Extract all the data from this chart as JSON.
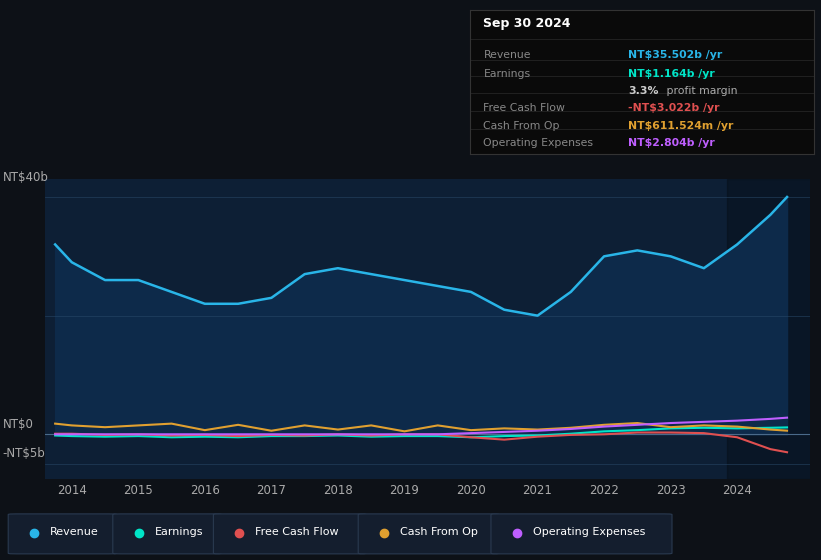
{
  "bg_color": "#0d1117",
  "plot_bg_color": "#0d1f35",
  "title_date": "Sep 30 2024",
  "ylabel_color": "#aaaaaa",
  "grid_color": "#2a4a6a",
  "zero_line_color": "#4a6a8a",
  "revenue_color": "#29b5e8",
  "earnings_color": "#00e5c8",
  "fcf_color": "#e05050",
  "cashfromop_color": "#e0a030",
  "opex_color": "#bf5fff",
  "revenue_fill_alpha": 0.9,
  "legend": [
    {
      "label": "Revenue",
      "color": "#29b5e8"
    },
    {
      "label": "Earnings",
      "color": "#00e5c8"
    },
    {
      "label": "Free Cash Flow",
      "color": "#e05050"
    },
    {
      "label": "Cash From Op",
      "color": "#e0a030"
    },
    {
      "label": "Operating Expenses",
      "color": "#bf5fff"
    }
  ],
  "revenue_data": {
    "x": [
      2013.75,
      2014.0,
      2014.5,
      2015.0,
      2015.5,
      2016.0,
      2016.5,
      2017.0,
      2017.5,
      2018.0,
      2018.5,
      2019.0,
      2019.5,
      2020.0,
      2020.5,
      2021.0,
      2021.5,
      2022.0,
      2022.5,
      2023.0,
      2023.5,
      2024.0,
      2024.5,
      2024.75
    ],
    "y": [
      32,
      29,
      26,
      26,
      24,
      22,
      22,
      23,
      27,
      28,
      27,
      26,
      25,
      24,
      21,
      20,
      24,
      30,
      31,
      30,
      28,
      32,
      37,
      40
    ]
  },
  "earnings_data": {
    "x": [
      2013.75,
      2014.0,
      2014.5,
      2015.0,
      2015.5,
      2016.0,
      2016.5,
      2017.0,
      2017.5,
      2018.0,
      2018.5,
      2019.0,
      2019.5,
      2020.0,
      2020.5,
      2021.0,
      2021.5,
      2022.0,
      2022.5,
      2023.0,
      2023.5,
      2024.0,
      2024.5,
      2024.75
    ],
    "y": [
      -0.2,
      -0.3,
      -0.4,
      -0.3,
      -0.5,
      -0.4,
      -0.5,
      -0.3,
      -0.3,
      -0.2,
      -0.4,
      -0.3,
      -0.3,
      -0.5,
      -0.3,
      -0.2,
      0.1,
      0.5,
      0.7,
      1.0,
      1.1,
      1.0,
      1.1,
      1.164
    ]
  },
  "fcf_data": {
    "x": [
      2013.75,
      2014.0,
      2014.5,
      2015.0,
      2015.5,
      2016.0,
      2016.5,
      2017.0,
      2017.5,
      2018.0,
      2018.5,
      2019.0,
      2019.5,
      2020.0,
      2020.5,
      2021.0,
      2021.5,
      2022.0,
      2022.5,
      2023.0,
      2023.5,
      2024.0,
      2024.5,
      2024.75
    ],
    "y": [
      0.1,
      0.1,
      -0.1,
      0.0,
      -0.2,
      -0.1,
      -0.3,
      -0.1,
      -0.2,
      0.0,
      -0.2,
      0.0,
      0.0,
      -0.5,
      -0.9,
      -0.4,
      -0.1,
      0.0,
      0.3,
      0.3,
      0.2,
      -0.5,
      -2.5,
      -3.022
    ]
  },
  "cashop_data": {
    "x": [
      2013.75,
      2014.0,
      2014.5,
      2015.0,
      2015.5,
      2016.0,
      2016.5,
      2017.0,
      2017.5,
      2018.0,
      2018.5,
      2019.0,
      2019.5,
      2020.0,
      2020.5,
      2021.0,
      2021.5,
      2022.0,
      2022.5,
      2023.0,
      2023.5,
      2024.0,
      2024.5,
      2024.75
    ],
    "y": [
      1.8,
      1.5,
      1.2,
      1.5,
      1.8,
      0.7,
      1.6,
      0.6,
      1.5,
      0.8,
      1.5,
      0.5,
      1.5,
      0.7,
      1.0,
      0.8,
      1.1,
      1.6,
      1.9,
      1.2,
      1.5,
      1.3,
      0.8,
      0.611
    ]
  },
  "opex_data": {
    "x": [
      2013.75,
      2014.0,
      2014.5,
      2015.0,
      2015.5,
      2016.0,
      2016.5,
      2017.0,
      2017.5,
      2018.0,
      2018.5,
      2019.0,
      2019.5,
      2020.0,
      2020.5,
      2021.0,
      2021.5,
      2022.0,
      2022.5,
      2023.0,
      2023.5,
      2024.0,
      2024.5,
      2024.75
    ],
    "y": [
      0.0,
      0.0,
      0.0,
      0.0,
      0.0,
      0.0,
      0.0,
      0.0,
      0.0,
      0.0,
      0.0,
      0.0,
      0.0,
      0.2,
      0.4,
      0.6,
      0.9,
      1.3,
      1.6,
      1.9,
      2.1,
      2.3,
      2.6,
      2.804
    ]
  }
}
